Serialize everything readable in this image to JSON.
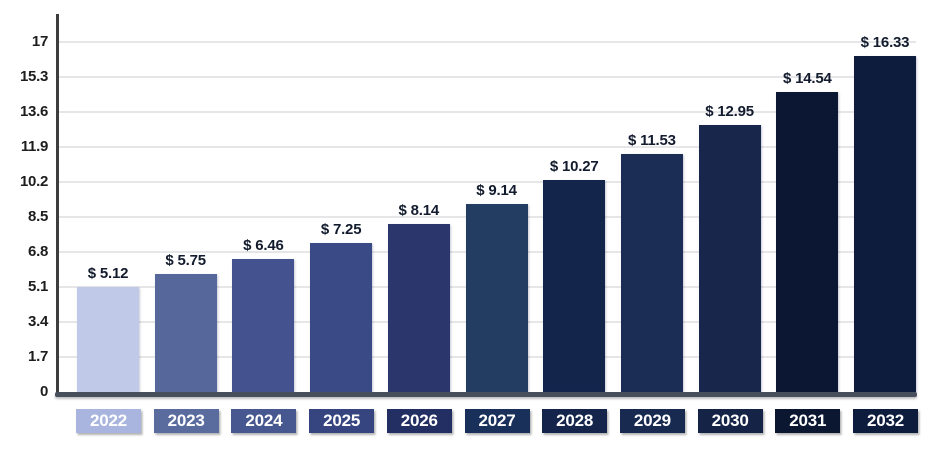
{
  "chart_data": {
    "type": "bar",
    "title": "",
    "xlabel": "",
    "ylabel": "",
    "categories": [
      "2022",
      "2023",
      "2024",
      "2025",
      "2026",
      "2027",
      "2028",
      "2029",
      "2030",
      "2031",
      "2032"
    ],
    "values": [
      5.12,
      5.75,
      6.46,
      7.25,
      8.14,
      9.14,
      10.27,
      11.53,
      12.95,
      14.54,
      16.33
    ],
    "value_labels": [
      "$ 5.12",
      "$ 5.75",
      "$ 6.46",
      "$ 7.25",
      "$ 8.14",
      "$ 9.14",
      "$ 10.27",
      "$ 11.53",
      "$ 12.95",
      "$ 14.54",
      "$ 16.33"
    ],
    "bar_colors": [
      "#c0cae8",
      "#55679b",
      "#445390",
      "#394a86",
      "#2b366c",
      "#233c62",
      "#14254c",
      "#1b2d55",
      "#17264a",
      "#0b1733",
      "#0d1b3c"
    ],
    "category_box_colors": [
      "#a9b5de",
      "#5a6b9e",
      "#47578f",
      "#36457f",
      "#232e62",
      "#19305b",
      "#14244a",
      "#182a50",
      "#152347",
      "#0b1731",
      "#0d1b3c"
    ],
    "category_text_color": "#ffffff",
    "value_label_color": "#131c2e",
    "tick_label_color": "#1d1d1d",
    "gridline_color": "#e6e6e8",
    "axis_line_color": "#3d3d3d",
    "baseline_color": "#474e5c",
    "ylim": [
      0,
      17
    ],
    "y_ticks": [
      "0",
      "1.7",
      "3.4",
      "5.1",
      "6.8",
      "8.5",
      "10.2",
      "11.9",
      "13.6",
      "15.3",
      "17"
    ],
    "y_tick_values": [
      0,
      1.7,
      3.4,
      5.1,
      6.8,
      8.5,
      10.2,
      11.9,
      13.6,
      15.3,
      17
    ],
    "grid": true,
    "legend": "none"
  }
}
